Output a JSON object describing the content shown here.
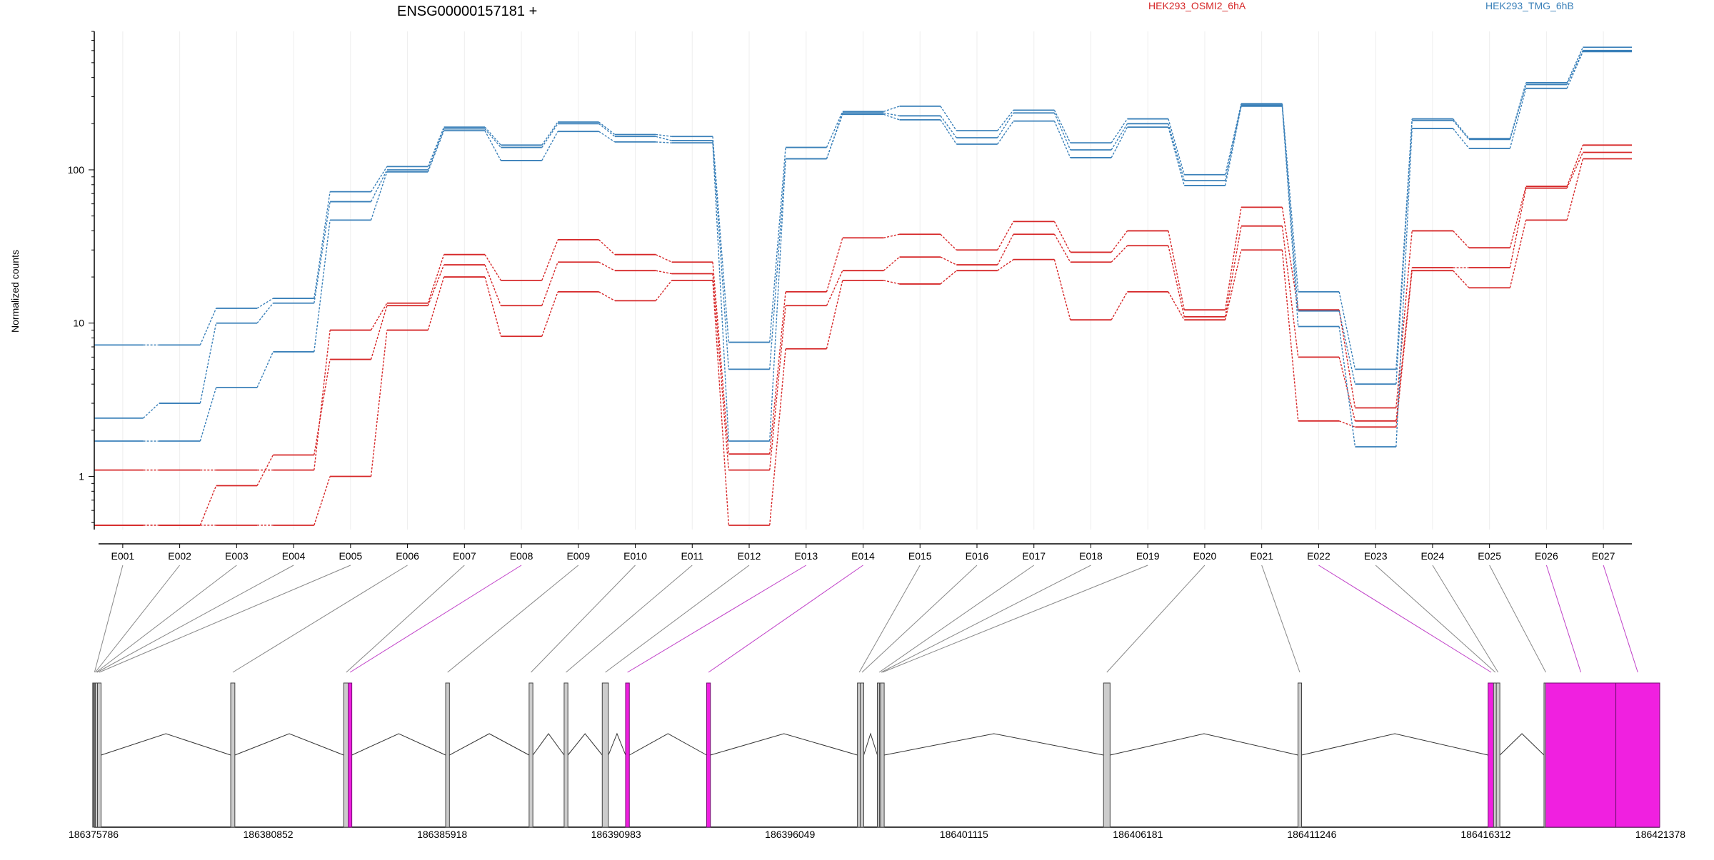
{
  "chart_data": {
    "type": "line",
    "title": "ENSG00000157181 +",
    "ylabel": "Normalized counts",
    "xlabel": "",
    "yscale": "log",
    "yticks": [
      1,
      10,
      100
    ],
    "ylim": [
      0.45,
      800
    ],
    "grid": "vertical",
    "legend_placement": "top-right",
    "colors": {
      "HEK293_OSMI2_6hA": "#d62728",
      "HEK293_TMG_6hB": "#3a80b9",
      "highlight_exon": "#f020e0"
    },
    "categories": [
      "E001",
      "E002",
      "E003",
      "E004",
      "E005",
      "E006",
      "E007",
      "E008",
      "E009",
      "E010",
      "E011",
      "E012",
      "E013",
      "E014",
      "E015",
      "E016",
      "E017",
      "E018",
      "E019",
      "E020",
      "E021",
      "E022",
      "E023",
      "E024",
      "E025",
      "E026",
      "E027"
    ],
    "legend": [
      "HEK293_OSMI2_6hA",
      "HEK293_TMG_6hB"
    ],
    "series": [
      {
        "group": "HEK293_OSMI2_6hA",
        "values": [
          1.1,
          1.1,
          1.1,
          1.1,
          9,
          13.5,
          28,
          19,
          35,
          28,
          25,
          1.4,
          16,
          36,
          38,
          30,
          46,
          29,
          40,
          12.2,
          57,
          12.2,
          2.8,
          40,
          31,
          78,
          145
        ]
      },
      {
        "group": "HEK293_OSMI2_6hA",
        "values": [
          0.48,
          0.48,
          0.87,
          1.38,
          5.8,
          13,
          24,
          13,
          25,
          22,
          21,
          1.1,
          13,
          22,
          27,
          24,
          38,
          25,
          32,
          11,
          43,
          6,
          2.3,
          23,
          23,
          76,
          130
        ]
      },
      {
        "group": "HEK293_OSMI2_6hA",
        "values": [
          0.48,
          0.48,
          0.48,
          0.48,
          1,
          9,
          20,
          8.2,
          16,
          14,
          19,
          0.48,
          6.8,
          19,
          18,
          22,
          26,
          10.5,
          16,
          10.5,
          30,
          2.3,
          2.1,
          22,
          17,
          47,
          118
        ]
      },
      {
        "group": "HEK293_TMG_6hB",
        "values": [
          7.2,
          7.2,
          12.5,
          14.5,
          72,
          105,
          190,
          145,
          205,
          170,
          165,
          7.5,
          140,
          240,
          260,
          180,
          245,
          150,
          215,
          93,
          270,
          16,
          5,
          215,
          160,
          370,
          630
        ]
      },
      {
        "group": "HEK293_TMG_6hB",
        "values": [
          2.4,
          3,
          10,
          13.5,
          62,
          100,
          185,
          140,
          200,
          165,
          155,
          5,
          118,
          235,
          225,
          162,
          235,
          135,
          200,
          85,
          265,
          12,
          4,
          210,
          158,
          360,
          600
        ]
      },
      {
        "group": "HEK293_TMG_6hB",
        "values": [
          1.7,
          1.7,
          3.8,
          6.5,
          47,
          97,
          180,
          115,
          178,
          152,
          150,
          1.7,
          118,
          230,
          212,
          147,
          208,
          120,
          190,
          79,
          260,
          9.5,
          1.56,
          186,
          138,
          340,
          590
        ]
      }
    ],
    "gene_model": {
      "coordinate_ticks": [
        "186375786",
        "186380852",
        "186385918",
        "186390983",
        "186396049",
        "186401115",
        "186406181",
        "186411246",
        "186416312",
        "186421378"
      ],
      "range": [
        186375786,
        186421378
      ],
      "highlighted_exons": [
        "E008",
        "E013",
        "E014",
        "E022",
        "E026",
        "E027"
      ],
      "exons": [
        {
          "name": "E001",
          "start": 186375786,
          "end": 186375800
        },
        {
          "name": "E002",
          "start": 186375800,
          "end": 186375828
        },
        {
          "name": "E003",
          "start": 186375828,
          "end": 186375856
        },
        {
          "name": "E004",
          "start": 186375856,
          "end": 186375880
        },
        {
          "name": "E005",
          "start": 186375880,
          "end": 186375985
        },
        {
          "name": "E006",
          "start": 186379760,
          "end": 186379880
        },
        {
          "name": "E007",
          "start": 186383050,
          "end": 186383200
        },
        {
          "name": "E008",
          "start": 186383200,
          "end": 186383270
        },
        {
          "name": "E009",
          "start": 186386020,
          "end": 186386130
        },
        {
          "name": "E010",
          "start": 186388450,
          "end": 186388560
        },
        {
          "name": "E011",
          "start": 186389470,
          "end": 186389580
        },
        {
          "name": "E012",
          "start": 186390580,
          "end": 186390760
        },
        {
          "name": "E013",
          "start": 186391260,
          "end": 186391370
        },
        {
          "name": "E014",
          "start": 186393620,
          "end": 186393730
        },
        {
          "name": "E015",
          "start": 186398020,
          "end": 186398110
        },
        {
          "name": "E016",
          "start": 186398110,
          "end": 186398180
        },
        {
          "name": "E017",
          "start": 186398600,
          "end": 186398690
        },
        {
          "name": "E018",
          "start": 186398690,
          "end": 186398720
        },
        {
          "name": "E019",
          "start": 186398720,
          "end": 186398760
        },
        {
          "name": "E020",
          "start": 186405180,
          "end": 186405370
        },
        {
          "name": "E021",
          "start": 186410860,
          "end": 186410930
        },
        {
          "name": "E022",
          "start": 186416380,
          "end": 186416560
        },
        {
          "name": "E023",
          "start": 186416560,
          "end": 186416620
        },
        {
          "name": "E024",
          "start": 186416620,
          "end": 186416720
        },
        {
          "name": "E025",
          "start": 186418060,
          "end": 186418060
        },
        {
          "name": "E026",
          "start": 186418060,
          "end": 186420100
        },
        {
          "name": "E027",
          "start": 186420100,
          "end": 186421378
        }
      ]
    }
  }
}
